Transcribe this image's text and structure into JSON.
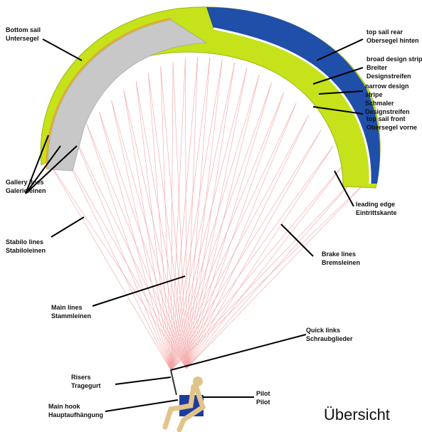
{
  "title": "Übersicht",
  "labels": [
    {
      "lines": [
        "Bottom sail",
        "Untersegel"
      ]
    },
    {
      "lines": [
        "top sail rear",
        "Obersegel hinten"
      ]
    },
    {
      "lines": [
        "broad design stripe",
        "Breiter",
        "Designstreifen"
      ]
    },
    {
      "lines": [
        "narrow design",
        "stripe",
        "Schmaler",
        "Designstreifen"
      ]
    },
    {
      "lines": [
        "top sail front",
        "Obersegel vorne"
      ]
    },
    {
      "lines": [
        "Gallery lines",
        "Galerieleinen"
      ]
    },
    {
      "lines": [
        "Stabilo lines",
        "Stabiloleinen"
      ]
    },
    {
      "lines": [
        "leading edge",
        "Eintrittskante"
      ]
    },
    {
      "lines": [
        "Brake lines",
        "Bremsleinen"
      ]
    },
    {
      "lines": [
        "Main lines",
        "Stammleinen"
      ]
    },
    {
      "lines": [
        "Quick links",
        "Schraubglieder"
      ]
    },
    {
      "lines": [
        "Risers",
        "Tragegurt"
      ]
    },
    {
      "lines": [
        "Main hook",
        "Hauptaufhängung"
      ]
    },
    {
      "lines": [
        "Pilot",
        "Pilot"
      ]
    }
  ]
}
